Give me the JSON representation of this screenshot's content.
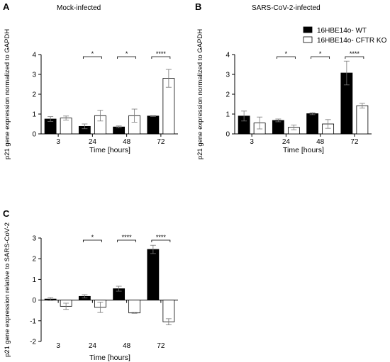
{
  "legend": [
    {
      "label": "16HBE14o- WT",
      "fill": "#000000"
    },
    {
      "label": "16HBE14o- CFTR KO",
      "fill": "#ffffff"
    }
  ],
  "colors": {
    "wt": "#000000",
    "ko": "#ffffff",
    "axis": "#000000"
  },
  "chart_data": [
    {
      "panel": "A",
      "type": "bar",
      "title": "Mock-infected",
      "xlabel": "Time [hours]",
      "ylabel": "p21 gene expression normalized to GAPDH",
      "ylim": [
        0,
        4
      ],
      "yticks": [
        0,
        1,
        2,
        3,
        4
      ],
      "categories": [
        "3",
        "24",
        "48",
        "72"
      ],
      "series": [
        {
          "name": "16HBE14o- WT",
          "values": [
            0.75,
            0.38,
            0.35,
            0.9
          ],
          "errors": [
            0.12,
            0.12,
            0.05,
            0.02
          ]
        },
        {
          "name": "16HBE14o- CFTR KO",
          "values": [
            0.8,
            0.92,
            0.92,
            2.8
          ],
          "errors": [
            0.1,
            0.27,
            0.33,
            0.45
          ]
        }
      ],
      "significance": [
        "",
        "*",
        "*",
        "****"
      ],
      "grid": false
    },
    {
      "panel": "B",
      "type": "bar",
      "title": "SARS-CoV-2-infected",
      "xlabel": "Time [hours]",
      "ylabel": "p21 gene expression normalized to GAPDH",
      "ylim": [
        0,
        4
      ],
      "yticks": [
        0,
        1,
        2,
        3,
        4
      ],
      "categories": [
        "3",
        "24",
        "48",
        "72"
      ],
      "series": [
        {
          "name": "16HBE14o- WT",
          "values": [
            0.9,
            0.68,
            1.02,
            3.07
          ],
          "errors": [
            0.25,
            0.07,
            0.05,
            0.6
          ]
        },
        {
          "name": "16HBE14o- CFTR KO",
          "values": [
            0.55,
            0.33,
            0.5,
            1.42
          ],
          "errors": [
            0.3,
            0.12,
            0.22,
            0.12
          ]
        }
      ],
      "significance": [
        "",
        "*",
        "*",
        "****"
      ],
      "grid": false
    },
    {
      "panel": "C",
      "type": "bar",
      "title": "",
      "xlabel": "Time [hours]",
      "ylabel": "p21 gene expression relative to SARS-CoV-2",
      "ylim": [
        -2,
        3
      ],
      "yticks": [
        -2,
        -1,
        0,
        1,
        2,
        3
      ],
      "categories": [
        "3",
        "24",
        "48",
        "72"
      ],
      "series": [
        {
          "name": "16HBE14o- WT",
          "values": [
            0.05,
            0.18,
            0.55,
            2.45
          ],
          "errors": [
            0.07,
            0.08,
            0.12,
            0.2
          ]
        },
        {
          "name": "16HBE14o- CFTR KO",
          "values": [
            -0.3,
            -0.35,
            -0.62,
            -1.05
          ],
          "errors": [
            0.15,
            0.25,
            0.02,
            0.15
          ]
        }
      ],
      "significance": [
        "",
        "*",
        "****",
        "****"
      ],
      "grid": false
    }
  ]
}
